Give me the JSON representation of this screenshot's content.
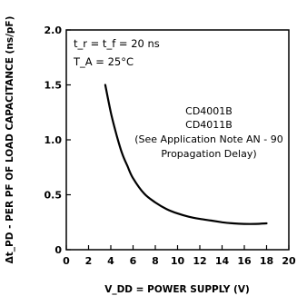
{
  "chart_data": {
    "type": "line",
    "xlabel": "V_DD = POWER SUPPLY (V)",
    "ylabel": "Δt_PD - PER PF OF LOAD CAPACITANCE (ns/pF)",
    "xlim": [
      0,
      20
    ],
    "ylim": [
      0,
      2.0
    ],
    "x_ticks": [
      "0",
      "2",
      "4",
      "6",
      "8",
      "10",
      "12",
      "14",
      "16",
      "18",
      "20"
    ],
    "y_ticks": [
      "0",
      "0.5",
      "1.0",
      "1.5",
      "2.0"
    ],
    "grid": false,
    "series": [
      {
        "x": [
          3.5,
          4,
          4.5,
          5,
          5.5,
          6,
          7,
          8,
          9,
          10,
          11,
          12,
          13,
          14,
          15,
          16,
          17,
          18
        ],
        "values": [
          1.5,
          1.25,
          1.05,
          0.88,
          0.76,
          0.65,
          0.51,
          0.43,
          0.37,
          0.33,
          0.3,
          0.28,
          0.265,
          0.25,
          0.24,
          0.235,
          0.235,
          0.24
        ]
      }
    ],
    "annotations": {
      "conditions": {
        "tr_tf": "t_r = t_f = 20 ns",
        "ta": "T_A = 25°C"
      },
      "device1": "CD4001B",
      "device2": "CD4011B",
      "note1": "(See Application Note AN - 90",
      "note2": "Propagation Delay)"
    }
  }
}
